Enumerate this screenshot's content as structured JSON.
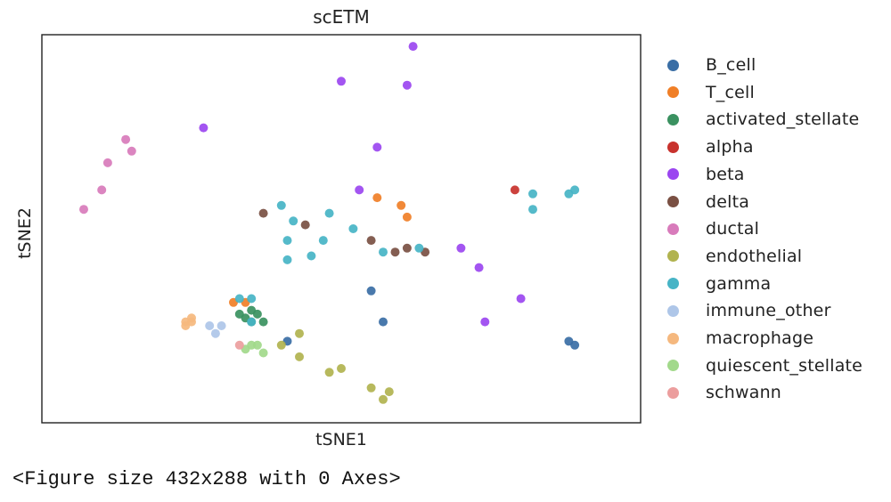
{
  "chart_data": {
    "type": "scatter",
    "title": "scETM",
    "xlabel": "tSNE1",
    "ylabel": "tSNE2",
    "xticks": "none",
    "yticks": "none",
    "legend_placement": "outside-right",
    "series": [
      {
        "name": "B_cell",
        "color": "#3a6ea5",
        "points": [
          [
            55,
            66
          ],
          [
            41,
            79
          ],
          [
            57,
            74
          ],
          [
            88,
            79
          ],
          [
            89,
            80
          ]
        ]
      },
      {
        "name": "T_cell",
        "color": "#f07f27",
        "points": [
          [
            34,
            69
          ],
          [
            56,
            42
          ],
          [
            60,
            44
          ],
          [
            61,
            47
          ],
          [
            32,
            69
          ]
        ]
      },
      {
        "name": "activated_stellate",
        "color": "#3a9160",
        "points": [
          [
            35,
            71
          ],
          [
            36,
            72
          ],
          [
            34,
            73
          ],
          [
            35,
            74
          ],
          [
            37,
            74
          ],
          [
            33,
            72
          ]
        ]
      },
      {
        "name": "alpha",
        "color": "#c8322d",
        "points": [
          [
            79,
            40
          ]
        ]
      },
      {
        "name": "beta",
        "color": "#9b46f0",
        "points": [
          [
            62,
            3
          ],
          [
            61,
            13
          ],
          [
            50,
            12
          ],
          [
            56,
            29
          ],
          [
            27,
            24
          ],
          [
            70,
            55
          ],
          [
            73,
            60
          ],
          [
            80,
            68
          ],
          [
            74,
            74
          ],
          [
            53,
            40
          ]
        ]
      },
      {
        "name": "delta",
        "color": "#7a5043",
        "points": [
          [
            37,
            46
          ],
          [
            44,
            49
          ],
          [
            55,
            53
          ],
          [
            61,
            55
          ],
          [
            64,
            56
          ],
          [
            59,
            56
          ]
        ]
      },
      {
        "name": "ductal",
        "color": "#d87bbb",
        "points": [
          [
            14,
            27
          ],
          [
            7,
            45
          ],
          [
            11,
            33
          ],
          [
            10,
            40
          ],
          [
            15,
            30
          ]
        ]
      },
      {
        "name": "endothelial",
        "color": "#b1b34f",
        "points": [
          [
            40,
            80
          ],
          [
            50,
            86
          ],
          [
            48,
            87
          ],
          [
            55,
            91
          ],
          [
            57,
            94
          ],
          [
            43,
            83
          ],
          [
            58,
            92
          ],
          [
            43,
            77
          ]
        ]
      },
      {
        "name": "gamma",
        "color": "#47b4c6",
        "points": [
          [
            40,
            44
          ],
          [
            42,
            48
          ],
          [
            48,
            46
          ],
          [
            47,
            53
          ],
          [
            52,
            50
          ],
          [
            57,
            56
          ],
          [
            63,
            55
          ],
          [
            88,
            41
          ],
          [
            82,
            41
          ],
          [
            82,
            45
          ],
          [
            89,
            40
          ],
          [
            41,
            53
          ],
          [
            45,
            57
          ],
          [
            41,
            58
          ],
          [
            33,
            68
          ],
          [
            35,
            68
          ],
          [
            35,
            74
          ]
        ]
      },
      {
        "name": "immune_other",
        "color": "#aec6e8",
        "points": [
          [
            28,
            75
          ],
          [
            30,
            75
          ],
          [
            29,
            77
          ]
        ]
      },
      {
        "name": "macrophage",
        "color": "#f5b87e",
        "points": [
          [
            25,
            73
          ],
          [
            24,
            74
          ],
          [
            25,
            74
          ],
          [
            24,
            75
          ]
        ]
      },
      {
        "name": "quiescent_stellate",
        "color": "#a2d98b",
        "points": [
          [
            36,
            80
          ],
          [
            37,
            82
          ],
          [
            34,
            81
          ],
          [
            35,
            80
          ]
        ]
      },
      {
        "name": "schwann",
        "color": "#ec9e9e",
        "points": [
          [
            33,
            80
          ]
        ]
      }
    ]
  },
  "console": {
    "text": "<Figure size 432x288 with 0 Axes>"
  }
}
